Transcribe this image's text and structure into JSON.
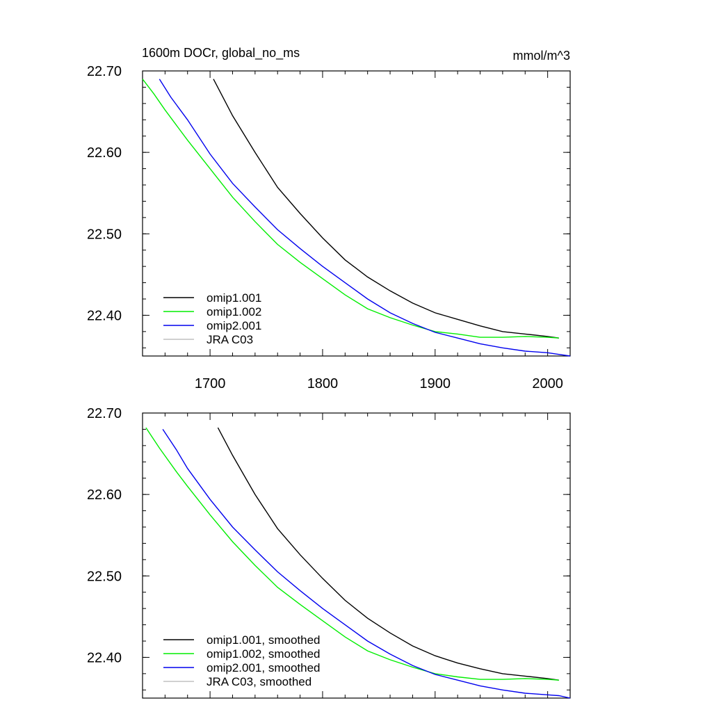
{
  "header": {
    "title": "1600m DOCr, global_no_ms",
    "units": "mmol/m^3"
  },
  "chart_data": [
    {
      "type": "line",
      "xlim": [
        1640,
        2020
      ],
      "ylim": [
        22.35,
        22.7
      ],
      "x_ticks": [
        1700,
        1800,
        1900,
        2000
      ],
      "x_tick_labels": [
        "1700",
        "1800",
        "1900",
        "2000"
      ],
      "y_ticks": [
        22.4,
        22.5,
        22.6,
        22.7
      ],
      "y_tick_labels": [
        "22.40",
        "22.50",
        "22.60",
        "22.70"
      ],
      "legend_position": "bottom-left",
      "legend": [
        "omip1.001",
        "omip1.002",
        "omip2.001",
        "JRA C03"
      ],
      "series": [
        {
          "name": "omip1.001",
          "color": "#000000",
          "x": [
            1703,
            1720,
            1740,
            1760,
            1780,
            1800,
            1820,
            1840,
            1860,
            1880,
            1900,
            1920,
            1940,
            1960,
            1980,
            2000,
            2010
          ],
          "y": [
            22.69,
            22.645,
            22.6,
            22.557,
            22.525,
            22.495,
            22.468,
            22.447,
            22.43,
            22.415,
            22.403,
            22.395,
            22.387,
            22.38,
            22.377,
            22.374,
            22.372
          ]
        },
        {
          "name": "omip1.002",
          "color": "#00ee00",
          "x": [
            1640,
            1650,
            1660,
            1680,
            1700,
            1720,
            1740,
            1760,
            1780,
            1800,
            1820,
            1840,
            1860,
            1880,
            1900,
            1920,
            1940,
            1960,
            1980,
            2000,
            2010
          ],
          "y": [
            22.69,
            22.672,
            22.652,
            22.615,
            22.58,
            22.545,
            22.515,
            22.487,
            22.465,
            22.445,
            22.425,
            22.408,
            22.397,
            22.388,
            22.38,
            22.377,
            22.373,
            22.373,
            22.374,
            22.373,
            22.372
          ]
        },
        {
          "name": "omip2.001",
          "color": "#0000ee",
          "x": [
            1655,
            1665,
            1680,
            1700,
            1720,
            1740,
            1760,
            1780,
            1800,
            1820,
            1840,
            1860,
            1880,
            1900,
            1920,
            1940,
            1960,
            1980,
            2000,
            2010,
            2020
          ],
          "y": [
            22.69,
            22.668,
            22.64,
            22.598,
            22.562,
            22.533,
            22.505,
            22.482,
            22.46,
            22.44,
            22.42,
            22.403,
            22.39,
            22.379,
            22.372,
            22.365,
            22.36,
            22.356,
            22.354,
            22.352,
            22.35
          ]
        },
        {
          "name": "JRA C03",
          "color": "#c0c0c0",
          "x": [],
          "y": []
        }
      ]
    },
    {
      "type": "line",
      "xlim": [
        1640,
        2020
      ],
      "ylim": [
        22.35,
        22.7
      ],
      "x_ticks": [
        1700,
        1800,
        1900,
        2000
      ],
      "y_ticks": [
        22.4,
        22.5,
        22.6,
        22.7
      ],
      "y_tick_labels": [
        "22.40",
        "22.50",
        "22.60",
        "22.70"
      ],
      "legend_position": "bottom-left",
      "legend": [
        "omip1.001, smoothed",
        "omip1.002, smoothed",
        "omip2.001, smoothed",
        "JRA C03, smoothed"
      ],
      "series": [
        {
          "name": "omip1.001, smoothed",
          "color": "#000000",
          "x": [
            1707,
            1720,
            1740,
            1760,
            1780,
            1800,
            1820,
            1840,
            1860,
            1880,
            1900,
            1920,
            1940,
            1960,
            1980,
            2000,
            2010
          ],
          "y": [
            22.682,
            22.648,
            22.6,
            22.558,
            22.526,
            22.497,
            22.47,
            22.448,
            22.43,
            22.414,
            22.402,
            22.393,
            22.386,
            22.38,
            22.377,
            22.374,
            22.372
          ]
        },
        {
          "name": "omip1.002, smoothed",
          "color": "#00ee00",
          "x": [
            1643,
            1655,
            1670,
            1680,
            1700,
            1720,
            1740,
            1760,
            1780,
            1800,
            1820,
            1840,
            1860,
            1880,
            1900,
            1920,
            1940,
            1960,
            1980,
            2000,
            2010
          ],
          "y": [
            22.682,
            22.657,
            22.628,
            22.61,
            22.575,
            22.542,
            22.513,
            22.486,
            22.465,
            22.445,
            22.425,
            22.408,
            22.397,
            22.388,
            22.38,
            22.376,
            22.373,
            22.373,
            22.374,
            22.373,
            22.372
          ]
        },
        {
          "name": "omip2.001, smoothed",
          "color": "#0000ee",
          "x": [
            1658,
            1670,
            1680,
            1700,
            1720,
            1740,
            1760,
            1780,
            1800,
            1820,
            1840,
            1860,
            1880,
            1900,
            1920,
            1940,
            1960,
            1980,
            2000,
            2010,
            2020
          ],
          "y": [
            22.68,
            22.655,
            22.632,
            22.594,
            22.56,
            22.532,
            22.505,
            22.482,
            22.46,
            22.44,
            22.42,
            22.404,
            22.39,
            22.379,
            22.372,
            22.365,
            22.36,
            22.356,
            22.354,
            22.353,
            22.35
          ]
        },
        {
          "name": "JRA C03, smoothed",
          "color": "#c0c0c0",
          "x": [],
          "y": []
        }
      ]
    }
  ]
}
